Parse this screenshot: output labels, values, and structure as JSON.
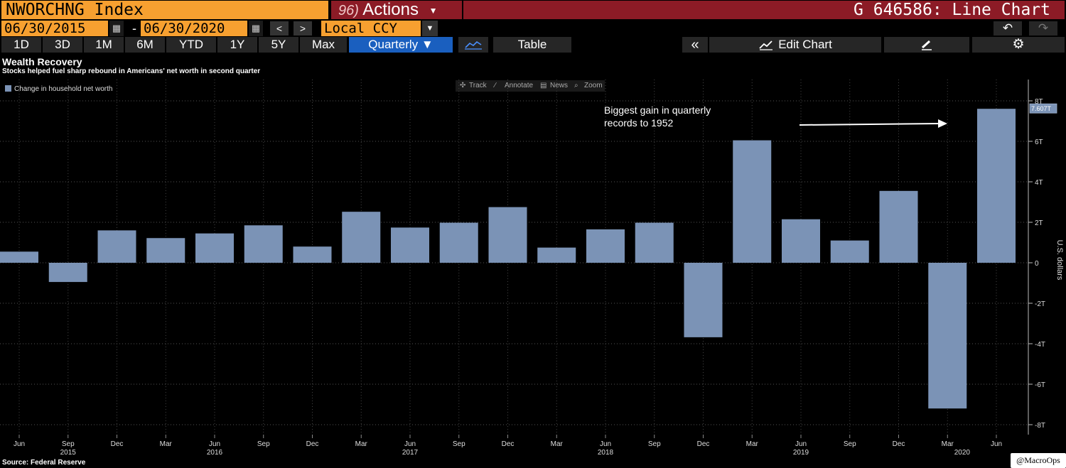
{
  "header": {
    "ticker": "NWORCHNG Index",
    "actions_num": "96)",
    "actions_label": "Actions",
    "caret": "▼",
    "title": "G 646586: Line Chart"
  },
  "dates": {
    "start": "06/30/2015",
    "separator": "-",
    "end": "06/30/2020"
  },
  "nav": {
    "prev": "<",
    "next": ">"
  },
  "currency": "Local CCY",
  "history": {
    "undo": "↶",
    "redo": "↷"
  },
  "periods": [
    "1D",
    "3D",
    "1M",
    "6M",
    "YTD",
    "1Y",
    "5Y",
    "Max"
  ],
  "frequency": "Quarterly ▼",
  "toolbar": {
    "table": "Table",
    "collapse": "«",
    "edit_chart": "Edit Chart",
    "settings": "⚙"
  },
  "tools": {
    "track": "Track",
    "annotate": "Annotate",
    "news": "News",
    "zoom": "Zoom"
  },
  "legend_label": "Change in household net worth",
  "source": "Source: Federal Reserve",
  "credit": "@MacroOps",
  "colors": {
    "bar": "#7b93b6",
    "orange": "#f7a030",
    "red": "#8c1b26",
    "active": "#1a5fbf"
  },
  "chart_data": {
    "type": "bar",
    "title": "Wealth Recovery",
    "subtitle": "Stocks helped fuel sharp rebound in Americans' net worth in second quarter",
    "ylabel": "U.S. dollars",
    "unit": "T",
    "ylim": [
      -8,
      8
    ],
    "yticks": [
      8,
      6,
      4,
      2,
      0,
      -2,
      -4,
      -6,
      -8
    ],
    "ytick_labels": [
      "8T",
      "6T",
      "4T",
      "2T",
      "0",
      "-2T",
      "-4T",
      "-6T",
      "-8T"
    ],
    "categories": [
      "Jun 2015",
      "Sep 2015",
      "Dec 2015",
      "Mar 2016",
      "Jun 2016",
      "Sep 2016",
      "Dec 2016",
      "Mar 2017",
      "Jun 2017",
      "Sep 2017",
      "Dec 2017",
      "Mar 2018",
      "Jun 2018",
      "Sep 2018",
      "Dec 2018",
      "Mar 2019",
      "Jun 2019",
      "Sep 2019",
      "Dec 2019",
      "Mar 2020",
      "Jun 2020"
    ],
    "month_labels": [
      "Jun",
      "Sep",
      "Dec",
      "Mar",
      "Jun",
      "Sep",
      "Dec",
      "Mar",
      "Jun",
      "Sep",
      "Dec",
      "Mar",
      "Jun",
      "Sep",
      "Dec",
      "Mar",
      "Jun",
      "Sep",
      "Dec",
      "Mar",
      "Jun"
    ],
    "year_labels": [
      {
        "label": "2015",
        "index": 1
      },
      {
        "label": "2016",
        "index": 4
      },
      {
        "label": "2017",
        "index": 8
      },
      {
        "label": "2018",
        "index": 12
      },
      {
        "label": "2019",
        "index": 16
      },
      {
        "label": "2020",
        "index": 19.3
      }
    ],
    "values": [
      0.55,
      -0.95,
      1.6,
      1.22,
      1.45,
      1.85,
      0.8,
      2.52,
      1.74,
      1.98,
      2.75,
      0.75,
      1.65,
      1.98,
      -3.68,
      6.05,
      2.15,
      1.1,
      3.55,
      -7.2,
      7.607
    ],
    "last_value_label": "7.607T",
    "annotation": {
      "line1": "Biggest gain in quarterly",
      "line2": "records to 1952"
    }
  }
}
